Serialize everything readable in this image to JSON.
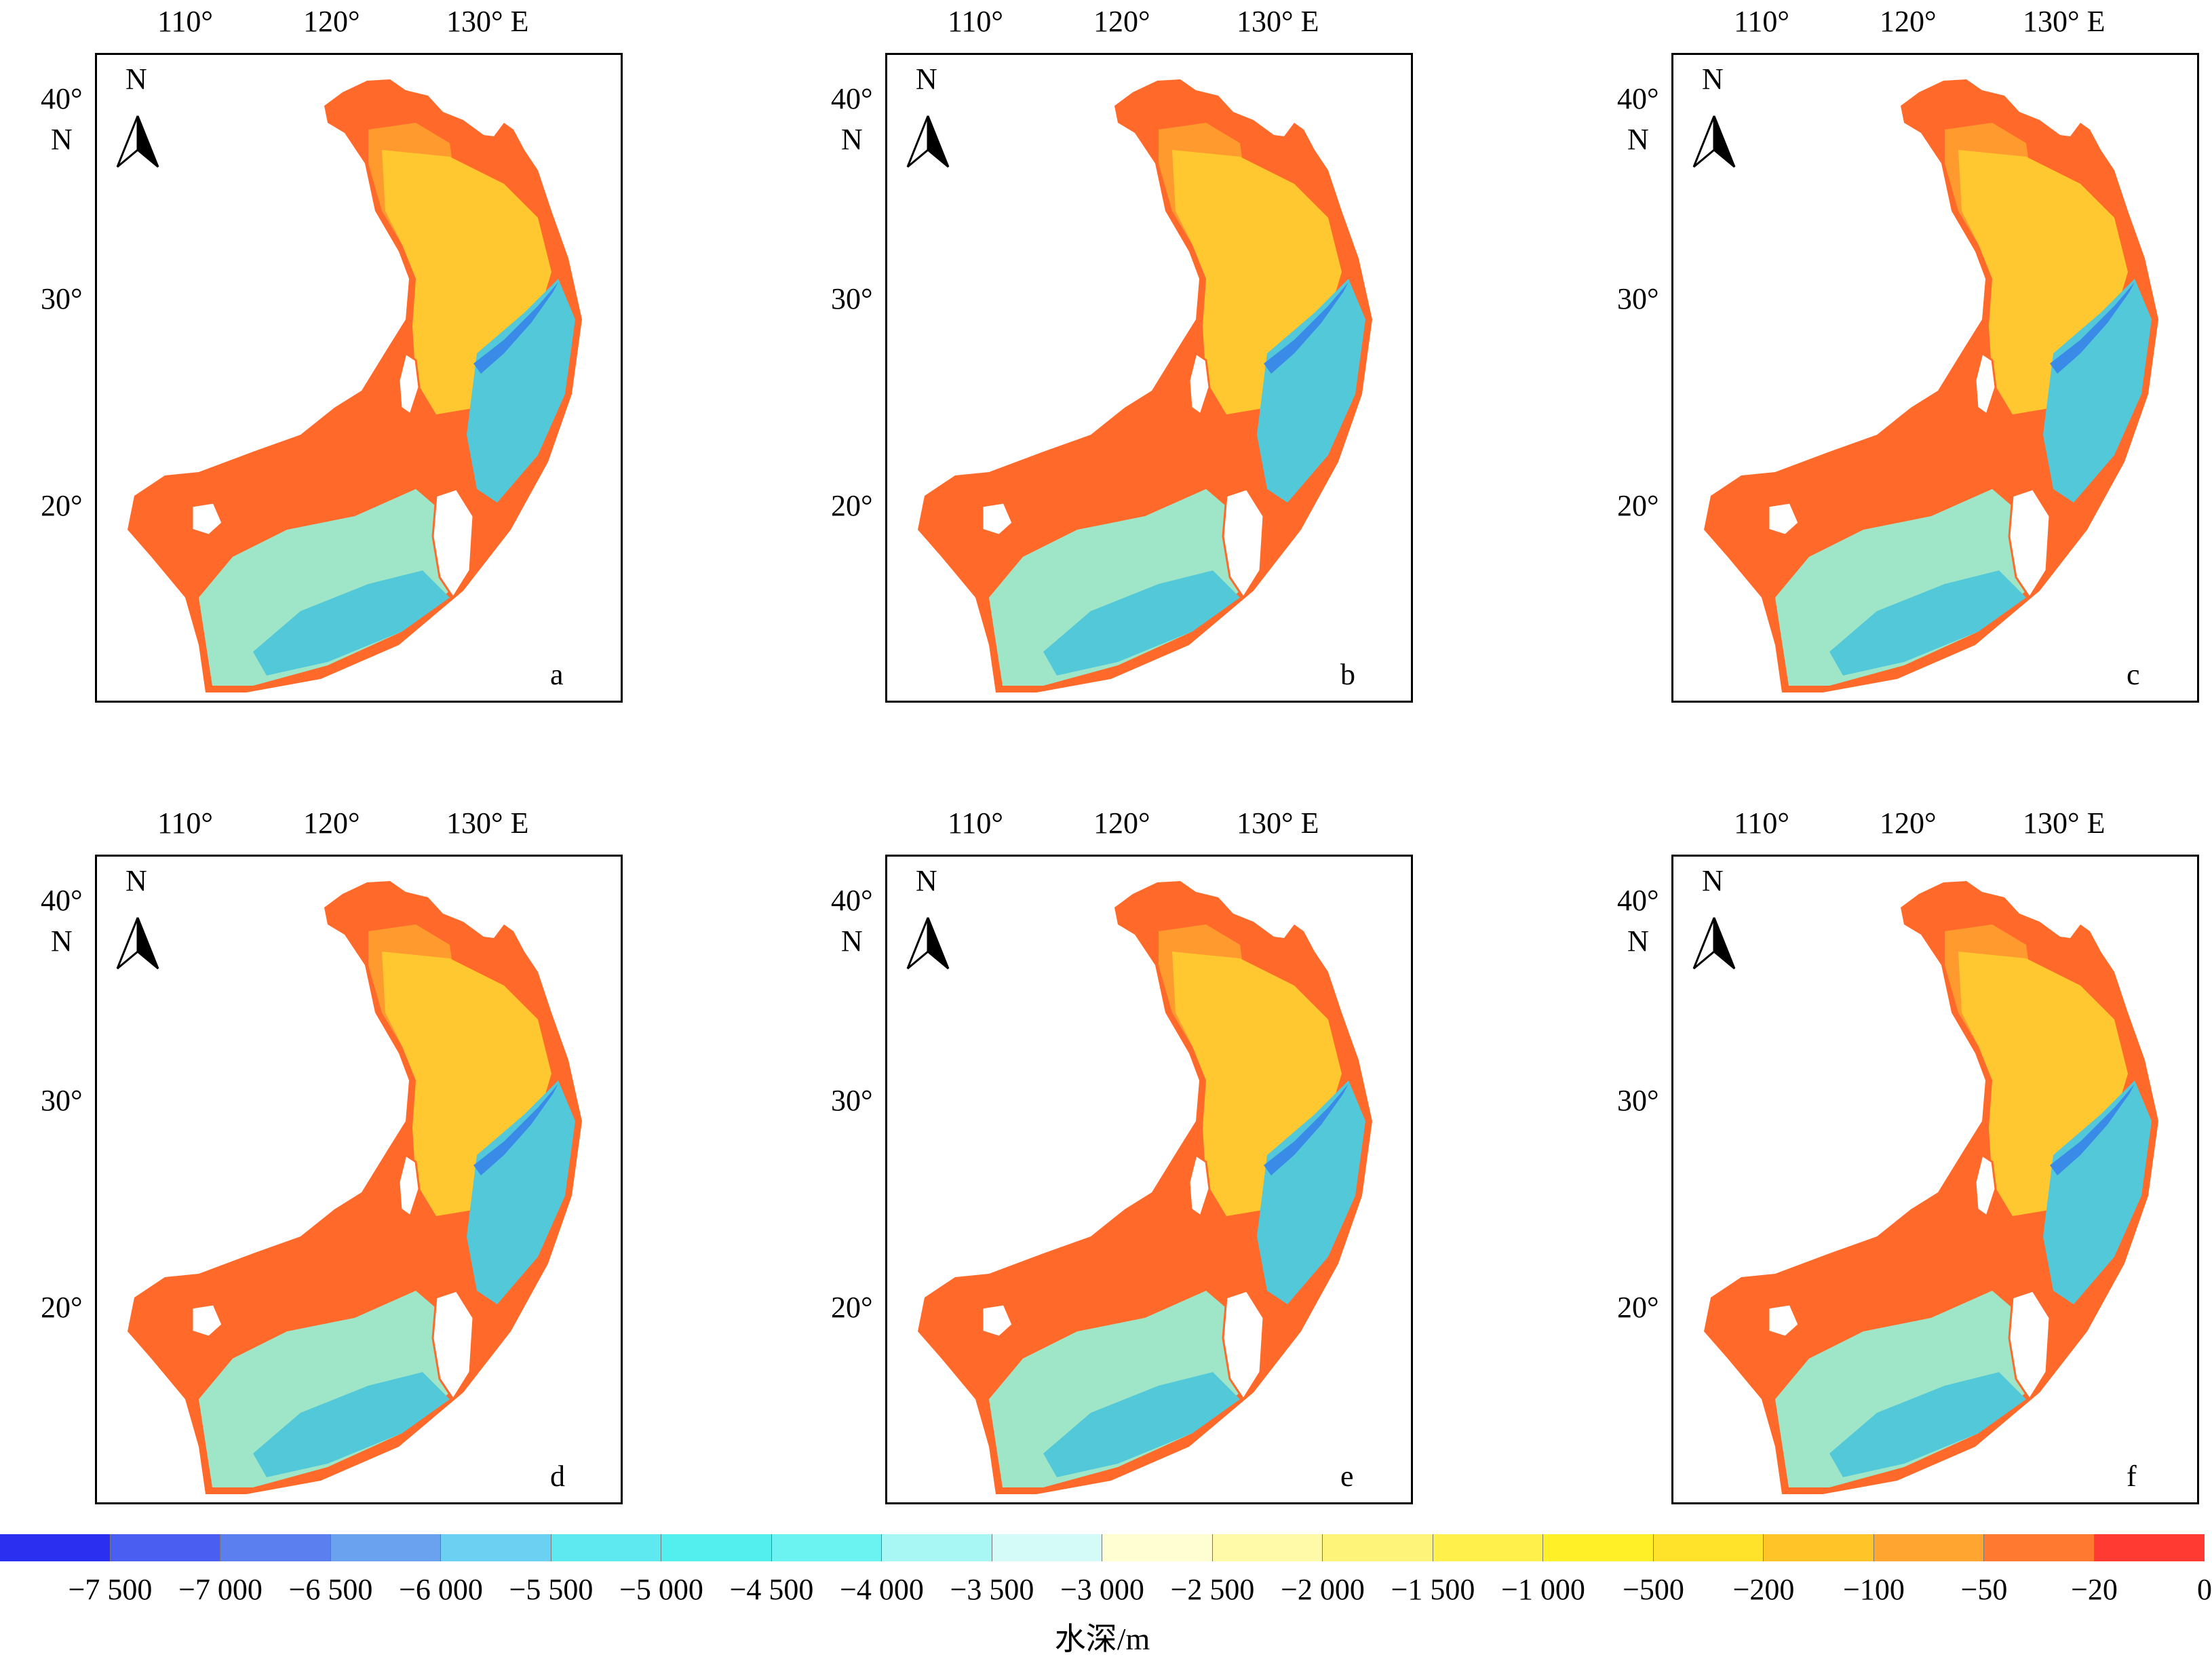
{
  "panels": [
    {
      "letter": "a"
    },
    {
      "letter": "b"
    },
    {
      "letter": "c"
    },
    {
      "letter": "d"
    },
    {
      "letter": "e"
    },
    {
      "letter": "f"
    }
  ],
  "axes": {
    "lon_labels": [
      "110°",
      "120°",
      "130° E"
    ],
    "lat_labels": [
      "40°",
      "30°",
      "20°"
    ],
    "lat_unit": "N",
    "north_label": "N"
  },
  "legend": {
    "title": "水深/m",
    "tick_labels": [
      "−7 500",
      "−7 000",
      "−6 500",
      "−6 000",
      "−5 500",
      "−5 000",
      "−4 500",
      "−4 000",
      "−3 500",
      "−3 000",
      "−2 500",
      "−2 000",
      "−1 500",
      "−1 000",
      "−500",
      "−200",
      "−100",
      "−50",
      "−20",
      "0"
    ],
    "colors": [
      "#2a2ff0",
      "#4a5ef2",
      "#5c7ff0",
      "#6aa2f0",
      "#6cd0f2",
      "#5ee8ef",
      "#52efee",
      "#6af3f0",
      "#a8f7f5",
      "#d4fbf8",
      "#fffdd2",
      "#fffaa8",
      "#fff47a",
      "#fff04c",
      "#fff027",
      "#ffe22a",
      "#ffc528",
      "#ffa530",
      "#ff7a30",
      "#ff3a32"
    ]
  },
  "colors": {
    "coastal": "#ff6a2a",
    "shelf": "#ff9a2e",
    "mid": "#ffc830",
    "slope": "#9fe6c8",
    "deep": "#52c8d8",
    "trench": "#3a8be8"
  }
}
